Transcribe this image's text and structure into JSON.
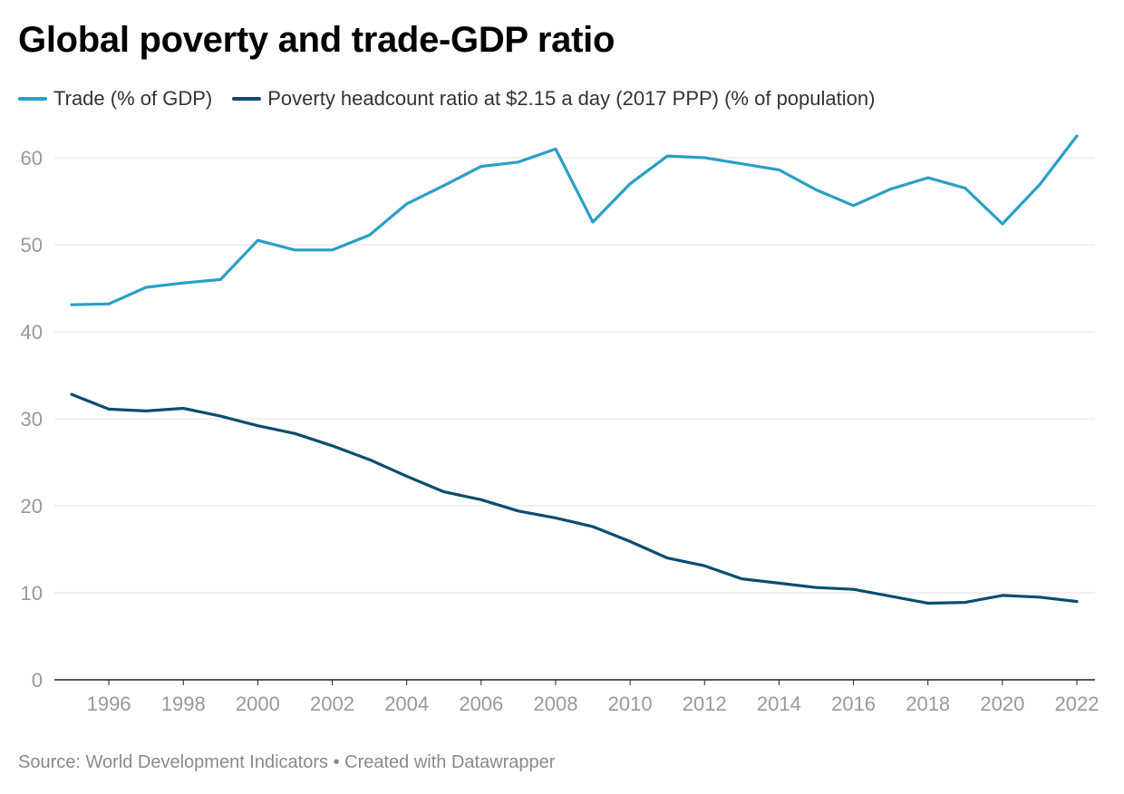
{
  "header": {
    "title": "Global poverty and trade-GDP ratio"
  },
  "footer": {
    "source": "Source: World Development Indicators • Created with Datawrapper"
  },
  "chart_data": {
    "type": "line",
    "title": "Global poverty and trade-GDP ratio",
    "xlabel": "",
    "ylabel": "",
    "xlim": [
      1995,
      2022
    ],
    "ylim": [
      0,
      62.5
    ],
    "grid": true,
    "legend_position": "top-left",
    "x_ticks": [
      1996,
      1998,
      2000,
      2002,
      2004,
      2006,
      2008,
      2010,
      2012,
      2014,
      2016,
      2018,
      2020,
      2022
    ],
    "y_ticks": [
      0,
      10,
      20,
      30,
      40,
      50,
      60
    ],
    "x": [
      1995,
      1996,
      1997,
      1998,
      1999,
      2000,
      2001,
      2002,
      2003,
      2004,
      2005,
      2006,
      2007,
      2008,
      2009,
      2010,
      2011,
      2012,
      2013,
      2014,
      2015,
      2016,
      2017,
      2018,
      2019,
      2020,
      2021,
      2022
    ],
    "series": [
      {
        "name": "Trade (% of GDP)",
        "color": "#2a9fc6",
        "values": [
          43.1,
          43.2,
          45.1,
          45.6,
          46.0,
          50.5,
          49.4,
          49.4,
          51.1,
          54.7,
          56.8,
          59.0,
          59.5,
          61.0,
          52.6,
          57.0,
          60.2,
          60.0,
          59.3,
          58.6,
          56.3,
          54.5,
          56.4,
          57.7,
          56.5,
          52.4,
          56.9,
          62.5
        ]
      },
      {
        "name": "Poverty headcount ratio at $2.15 a day (2017 PPP) (% of population)",
        "color": "#0a4d6e",
        "values": [
          32.8,
          31.1,
          30.9,
          31.2,
          30.3,
          29.2,
          28.3,
          26.9,
          25.3,
          23.4,
          21.6,
          20.7,
          19.4,
          18.6,
          17.6,
          15.9,
          14.0,
          13.1,
          11.6,
          11.1,
          10.6,
          10.4,
          9.6,
          8.8,
          8.9,
          9.7,
          9.5,
          9.0
        ]
      }
    ]
  }
}
